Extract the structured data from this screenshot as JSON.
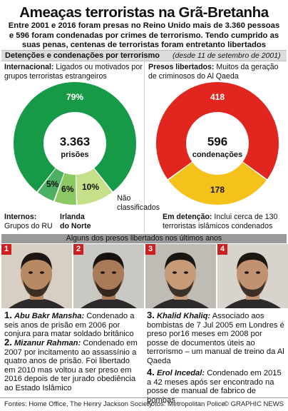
{
  "title": "Ameaças terroristas na Grã-Bretanha",
  "intro": "Entre 2001 e 2016 foram presas no Reino Unido mais de 3.360 pessoas e 596 foram condenadas por crimes de terrorismo. Tendo cumprido as suas penas, centenas de terroristas foram entretanto libertados",
  "section1": {
    "title": "Detenções e condenações por terrorismo",
    "subtitle": "(desde 11 de setembro de  2001)"
  },
  "left_chart": {
    "top_label_bold": "Internacional:",
    "top_label": "Ligados ou motivados por grupos terroristas estrangeiros",
    "center_value": "3.363",
    "center_label": "prisões",
    "slices": [
      {
        "label": "79%",
        "value": 79,
        "color": "#169a48"
      },
      {
        "label": "10%",
        "value": 10,
        "color": "#c6e08a"
      },
      {
        "label": "6%",
        "value": 6,
        "color": "#8cc864"
      },
      {
        "label": "5%",
        "value": 5,
        "color": "#4daf63"
      }
    ],
    "internos_bold": "Internos:",
    "internos": "Grupos do RU",
    "irlanda": "Irlanda do Norte",
    "nao": "Não classificados"
  },
  "right_chart": {
    "top_label_bold": "Presos libertados:",
    "top_label": "Muitos da geração de criminosos do Al Qaeda",
    "center_value": "596",
    "center_label": "condenações",
    "slices": [
      {
        "label": "418",
        "value": 418,
        "color": "#e0261e"
      },
      {
        "label": "178",
        "value": 178,
        "color": "#f5c21b"
      }
    ],
    "bottom_label_bold": "Em detenção:",
    "bottom_label": "Inclui cerca de 130 terroristas islâmicos condenados"
  },
  "section2": {
    "title": "Alguns dos presos libertados nos últimos anos"
  },
  "photos": [
    {
      "num": "1",
      "skin": "#b88a64",
      "bg": "#d7cfc4",
      "hair": "#1c1612"
    },
    {
      "num": "2",
      "skin": "#a97a58",
      "bg": "#c9c9c4",
      "hair": "#18120e"
    },
    {
      "num": "3",
      "skin": "#c79a78",
      "bg": "#bfbcb6",
      "hair": "#1a1511"
    },
    {
      "num": "4",
      "skin": "#c09272",
      "bg": "#d8d4cd",
      "hair": "#1d1713"
    }
  ],
  "bios": [
    {
      "num": "1.",
      "name": "Abu Bakr Mansha:",
      "text": "Condenado a seis anos de prisão em 2006 por conjura para matar soldado britânico"
    },
    {
      "num": "2.",
      "name": "Mizanur Rahman:",
      "text": "Condenado em 2007 por incitamento ao assassínio a quatro anos de prisão. Foi libertado em 2010 mas voltou a ser preso em 2016 depois de ter jurado obediência ao Estado Islâmico"
    },
    {
      "num": "3.",
      "name": "Khalid Khaliq:",
      "text": "Associado aos bombistas de 7 Jul 2005 em Londres é preso por16 meses em 2008 por posse de documentos úteis ao terrorismo – um manual de treino da Al Qaeda"
    },
    {
      "num": "4.",
      "name": "Erol Incedal:",
      "text": "Condenado em 2015 a 42 meses após ser encontrado na posse de manual de fabrico de bombas"
    }
  ],
  "footer": {
    "sources": "Fontes: Home Office, The Henry Jackson Society",
    "photos": "Fotos: Metropolitan Police",
    "copyright": "© GRAPHIC NEWS"
  }
}
